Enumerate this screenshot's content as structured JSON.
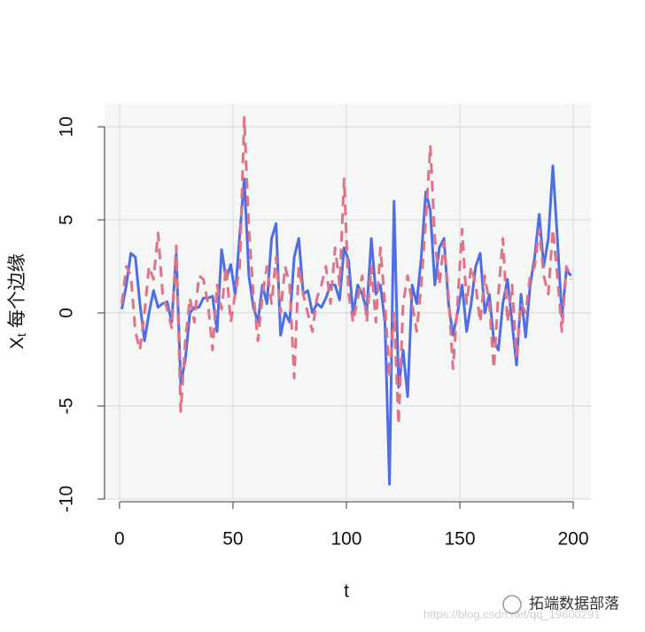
{
  "chart_data": {
    "type": "line",
    "x_label": "t",
    "y_label": {
      "main": "X",
      "sub": "t",
      "rest": "每个边缘"
    },
    "x": [
      1,
      3,
      5,
      7,
      9,
      11,
      13,
      15,
      17,
      19,
      21,
      23,
      25,
      27,
      29,
      31,
      33,
      35,
      37,
      39,
      41,
      43,
      45,
      47,
      49,
      51,
      53,
      55,
      57,
      59,
      61,
      63,
      65,
      67,
      69,
      71,
      73,
      75,
      77,
      79,
      81,
      83,
      85,
      87,
      89,
      91,
      93,
      95,
      97,
      99,
      101,
      103,
      105,
      107,
      109,
      111,
      113,
      115,
      117,
      119,
      121,
      123,
      125,
      127,
      129,
      131,
      133,
      135,
      137,
      139,
      141,
      143,
      145,
      147,
      149,
      151,
      153,
      155,
      157,
      159,
      161,
      163,
      165,
      167,
      169,
      171,
      173,
      175,
      177,
      179,
      181,
      183,
      185,
      187,
      189,
      191,
      193,
      195,
      197,
      199
    ],
    "series": [
      {
        "color": "#4f6ee3",
        "linestyle": "solid",
        "values": [
          0.2,
          1.5,
          3.2,
          3.0,
          0.5,
          -1.5,
          0.0,
          1.2,
          0.3,
          0.5,
          0.6,
          -0.5,
          3.2,
          -3.8,
          -2.5,
          0.0,
          0.3,
          0.3,
          0.8,
          0.8,
          0.9,
          -1.0,
          3.4,
          1.8,
          2.6,
          1.0,
          4.2,
          7.2,
          2.0,
          0.3,
          -0.5,
          1.5,
          0.5,
          4.0,
          4.8,
          -1.2,
          0.0,
          -0.5,
          3.0,
          4.0,
          1.0,
          1.2,
          0.0,
          0.5,
          0.3,
          0.8,
          1.5,
          1.5,
          0.7,
          3.5,
          2.8,
          -0.1,
          1.5,
          1.0,
          0.1,
          4.0,
          1.0,
          1.5,
          -0.5,
          -9.2,
          6.0,
          -4.0,
          -2.0,
          -4.5,
          1.5,
          0.5,
          3.0,
          6.5,
          5.5,
          1.5,
          3.5,
          4.0,
          0.5,
          -1.2,
          0.0,
          1.5,
          -1.0,
          0.5,
          2.5,
          3.2,
          0.0,
          1.0,
          -1.5,
          -2.0,
          0.5,
          1.8,
          -0.5,
          -2.8,
          1.0,
          -1.3,
          1.5,
          3.0,
          5.3,
          2.5,
          4.0,
          7.9,
          4.0,
          -0.2,
          2.3,
          2.0
        ]
      },
      {
        "color": "#e07487",
        "linestyle": "dashed",
        "values": [
          0.5,
          2.5,
          2.0,
          -1.0,
          -2.0,
          0.0,
          2.5,
          1.8,
          4.3,
          1.0,
          0.2,
          -0.8,
          3.6,
          -5.3,
          -1.5,
          0.8,
          -0.5,
          2.0,
          1.8,
          0.5,
          -2.0,
          1.5,
          0.2,
          2.5,
          -0.5,
          1.0,
          2.5,
          10.5,
          4.5,
          1.0,
          -1.5,
          1.0,
          2.5,
          0.5,
          3.0,
          0.0,
          2.5,
          1.5,
          -3.5,
          2.5,
          1.0,
          0.0,
          -1.0,
          0.8,
          1.5,
          2.5,
          0.5,
          3.5,
          1.5,
          7.2,
          1.0,
          -0.5,
          0.8,
          2.0,
          -0.5,
          2.5,
          -0.5,
          3.5,
          0.5,
          -3.5,
          0.0,
          -6.0,
          0.5,
          2.0,
          0.5,
          -1.0,
          1.5,
          5.0,
          9.0,
          4.0,
          1.5,
          3.8,
          1.0,
          -3.0,
          0.5,
          4.5,
          0.5,
          2.5,
          1.5,
          -0.5,
          2.0,
          0.5,
          -3.0,
          1.0,
          4.0,
          -0.5,
          1.5,
          -2.3,
          0.5,
          0.0,
          2.0,
          2.5,
          4.5,
          2.0,
          1.0,
          4.5,
          2.0,
          -1.0,
          2.5,
          1.8
        ]
      }
    ],
    "xlim": [
      -6.6,
      207.8
    ],
    "ylim": [
      -10,
      11.24
    ],
    "xticks": [
      0,
      50,
      100,
      150,
      200
    ],
    "yticks": [
      -10,
      -5,
      0,
      5,
      10
    ],
    "grid": true,
    "background": "#f5f6f6",
    "annotations": [
      "拓端数据部落",
      "https://blog.csdn.net/qq_19600291"
    ]
  }
}
